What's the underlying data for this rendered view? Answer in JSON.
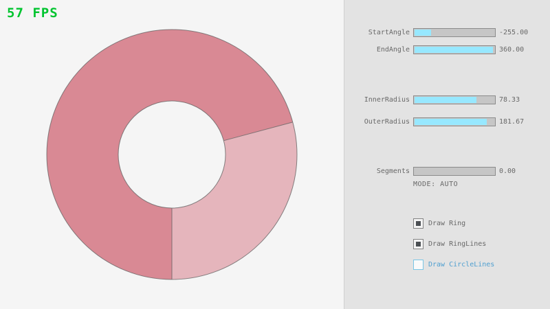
{
  "fps": {
    "text": "57 FPS",
    "color": "#00c42f"
  },
  "ring": {
    "color_dark": "#d98994",
    "color_light": "#e5b5bc",
    "line_color": "#5f5f5f"
  },
  "controls": {
    "sliders": [
      {
        "label": "StartAngle",
        "value": "-255.00",
        "fill_pct": 22
      },
      {
        "label": "EndAngle",
        "value": "360.00",
        "fill_pct": 98
      },
      {
        "label": "InnerRadius",
        "value": "78.33",
        "fill_pct": 78
      },
      {
        "label": "OuterRadius",
        "value": "181.67",
        "fill_pct": 91
      },
      {
        "label": "Segments",
        "value": "0.00",
        "fill_pct": 0
      }
    ],
    "mode_text": "MODE: AUTO",
    "checkboxes": [
      {
        "label": "Draw Ring",
        "checked": true
      },
      {
        "label": "Draw RingLines",
        "checked": true
      },
      {
        "label": "Draw CircleLines",
        "checked": false
      }
    ]
  }
}
